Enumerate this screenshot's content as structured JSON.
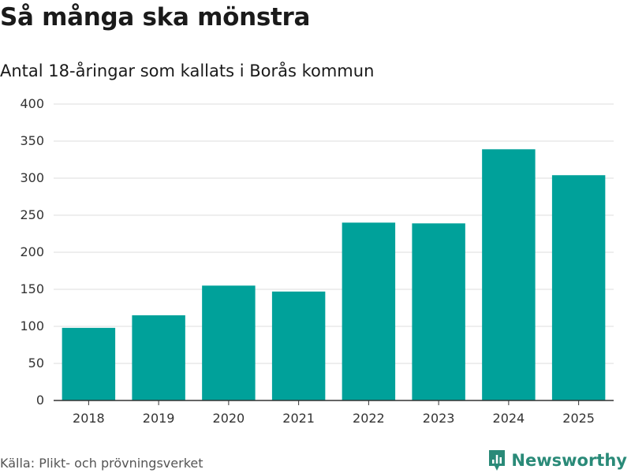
{
  "title": "Så många ska mönstra",
  "subtitle": "Antal 18-åringar som kallats i Borås kommun",
  "source": "Källa: Plikt- och prövningsverket",
  "brand": {
    "name": "Newsworthy",
    "color": "#2a8a78"
  },
  "colors": {
    "bar": "#00a19a",
    "grid": "#dedede",
    "axis": "#333333"
  },
  "chart_data": {
    "type": "bar",
    "title": "Så många ska mönstra",
    "subtitle": "Antal 18-åringar som kallats i Borås kommun",
    "categories": [
      "2018",
      "2019",
      "2020",
      "2021",
      "2022",
      "2023",
      "2024",
      "2025"
    ],
    "values": [
      98,
      115,
      155,
      147,
      240,
      239,
      339,
      304
    ],
    "xlabel": "",
    "ylabel": "",
    "ylim": [
      0,
      400
    ],
    "yticks": [
      0,
      50,
      100,
      150,
      200,
      250,
      300,
      350,
      400
    ],
    "grid": true,
    "legend": "none"
  }
}
